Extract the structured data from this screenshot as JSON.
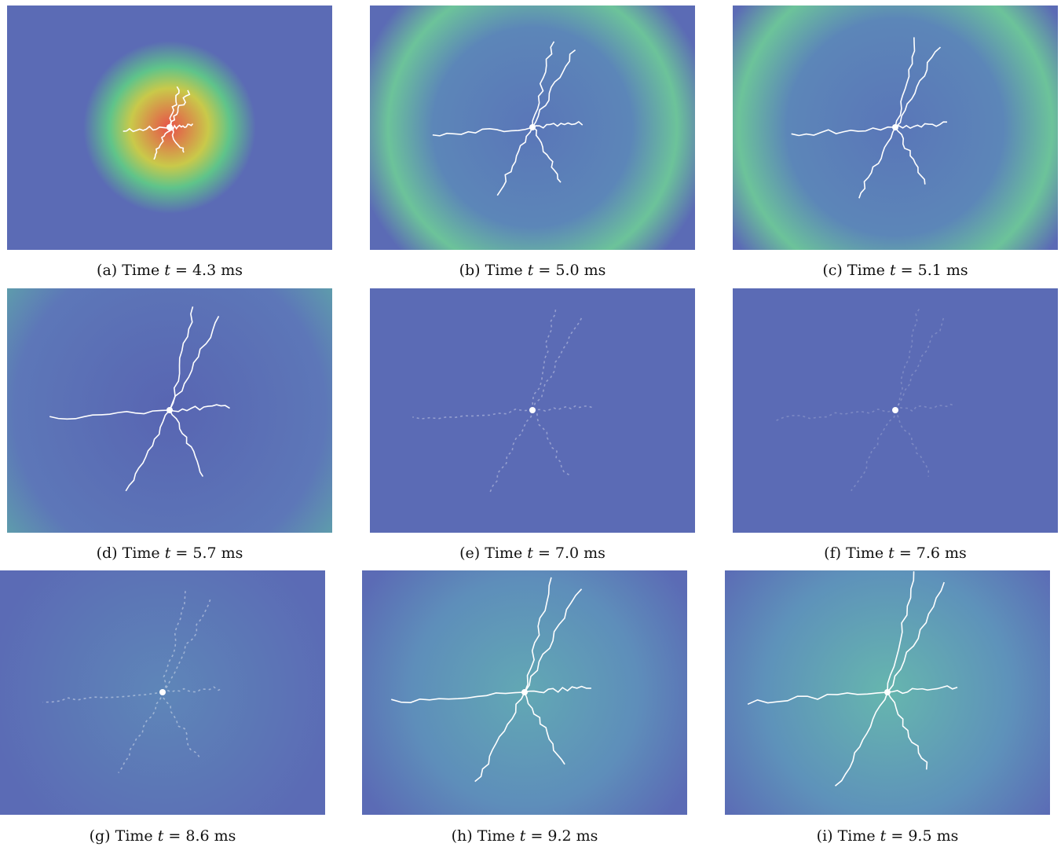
{
  "figure": {
    "panels": [
      {
        "label": "(a)",
        "prefix": "Time",
        "variable": "t",
        "value": "= 4.3 ms"
      },
      {
        "label": "(b)",
        "prefix": "Time",
        "variable": "t",
        "value": "= 5.0 ms"
      },
      {
        "label": "(c)",
        "prefix": "Time",
        "variable": "t",
        "value": "= 5.1 ms"
      },
      {
        "label": "(d)",
        "prefix": "Time",
        "variable": "t",
        "value": "= 5.7 ms"
      },
      {
        "label": "(e)",
        "prefix": "Time",
        "variable": "t",
        "value": "= 7.0 ms"
      },
      {
        "label": "(f)",
        "prefix": "Time",
        "variable": "t",
        "value": "= 7.6 ms"
      },
      {
        "label": "(g)",
        "prefix": "Time",
        "variable": "t",
        "value": "= 8.6 ms"
      },
      {
        "label": "(h)",
        "prefix": "Time",
        "variable": "t",
        "value": "= 9.2 ms"
      },
      {
        "label": "(i)",
        "prefix": "Time",
        "variable": "t",
        "value": "= 9.5 ms"
      }
    ]
  }
}
